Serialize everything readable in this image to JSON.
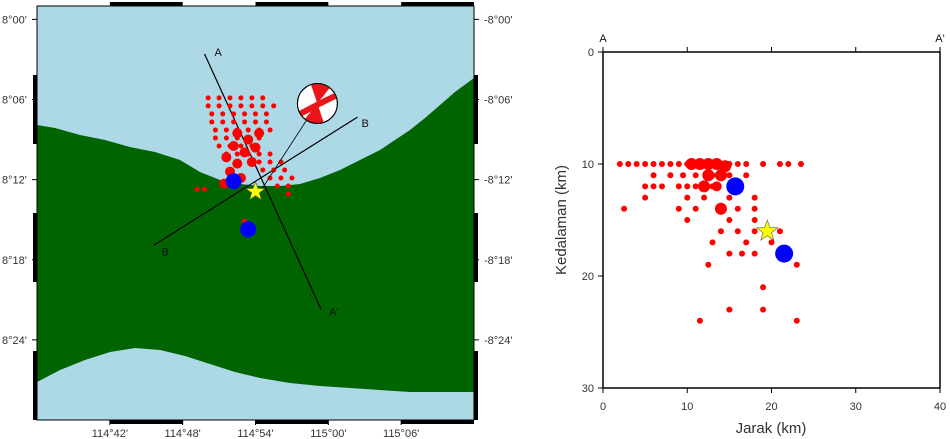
{
  "map": {
    "lon_range": [
      114.6,
      115.2
    ],
    "lat_range": [
      -8.5,
      -7.9833
    ],
    "lon_ticks": [
      {
        "value": 114.7,
        "label": "114°42'"
      },
      {
        "value": 114.8,
        "label": "114°48'"
      },
      {
        "value": 114.9,
        "label": "114°54'"
      },
      {
        "value": 115.0,
        "label": "115°00'"
      },
      {
        "value": 115.1,
        "label": "115°06'"
      }
    ],
    "lat_ticks": [
      {
        "value": -8.0,
        "label": "8°00'",
        "label_right": "-8°00'"
      },
      {
        "value": -8.1,
        "label": "8°06'",
        "label_right": "-8°06'"
      },
      {
        "value": -8.2,
        "label": "8°12'",
        "label_right": "-8°12'"
      },
      {
        "value": -8.3,
        "label": "8°18'",
        "label_right": "-8°18'"
      },
      {
        "value": -8.4,
        "label": "8°24'",
        "label_right": "-8°24'"
      }
    ],
    "colors": {
      "sea": "#add8e6",
      "land": "#006400",
      "event": "#ff0000",
      "station": "#0000ff",
      "mainshock": "#ffff00"
    },
    "profile_A": {
      "start_label": "A",
      "end_label": "A'",
      "start": [
        114.83,
        -8.043
      ],
      "end": [
        114.99,
        -8.362
      ]
    },
    "profile_B": {
      "start_label": "B",
      "end_label": "",
      "start": [
        114.76,
        -8.282
      ],
      "end": [
        115.04,
        -8.122
      ]
    },
    "mainshock": {
      "lon": 114.9,
      "lat": -8.215
    },
    "stations": [
      {
        "lon": 114.87,
        "lat": -8.202
      },
      {
        "lon": 114.89,
        "lat": -8.262
      }
    ],
    "focal_mechanism": {
      "lon": 114.985,
      "lat": -8.105,
      "leader_to": [
        114.91,
        -8.21
      ]
    },
    "events": [
      {
        "lon": 114.835,
        "lat": -8.098,
        "s": 2.5
      },
      {
        "lon": 114.85,
        "lat": -8.098,
        "s": 2.5
      },
      {
        "lon": 114.865,
        "lat": -8.098,
        "s": 2.5
      },
      {
        "lon": 114.88,
        "lat": -8.098,
        "s": 2.5
      },
      {
        "lon": 114.895,
        "lat": -8.098,
        "s": 2.5
      },
      {
        "lon": 114.91,
        "lat": -8.098,
        "s": 2.5
      },
      {
        "lon": 114.835,
        "lat": -8.108,
        "s": 2.5
      },
      {
        "lon": 114.85,
        "lat": -8.108,
        "s": 2.5
      },
      {
        "lon": 114.865,
        "lat": -8.108,
        "s": 2.5
      },
      {
        "lon": 114.88,
        "lat": -8.108,
        "s": 2.5
      },
      {
        "lon": 114.895,
        "lat": -8.108,
        "s": 2.5
      },
      {
        "lon": 114.91,
        "lat": -8.108,
        "s": 2.5
      },
      {
        "lon": 114.925,
        "lat": -8.108,
        "s": 2.5
      },
      {
        "lon": 114.84,
        "lat": -8.118,
        "s": 2.5
      },
      {
        "lon": 114.855,
        "lat": -8.118,
        "s": 2.5
      },
      {
        "lon": 114.87,
        "lat": -8.118,
        "s": 2.5
      },
      {
        "lon": 114.885,
        "lat": -8.118,
        "s": 2.5
      },
      {
        "lon": 114.9,
        "lat": -8.118,
        "s": 2.5
      },
      {
        "lon": 114.915,
        "lat": -8.118,
        "s": 2.5
      },
      {
        "lon": 114.84,
        "lat": -8.128,
        "s": 2.5
      },
      {
        "lon": 114.855,
        "lat": -8.128,
        "s": 2.5
      },
      {
        "lon": 114.87,
        "lat": -8.128,
        "s": 2.5
      },
      {
        "lon": 114.885,
        "lat": -8.128,
        "s": 2.5
      },
      {
        "lon": 114.9,
        "lat": -8.128,
        "s": 2.5
      },
      {
        "lon": 114.915,
        "lat": -8.128,
        "s": 2.5
      },
      {
        "lon": 114.845,
        "lat": -8.138,
        "s": 2.5
      },
      {
        "lon": 114.86,
        "lat": -8.138,
        "s": 2.5
      },
      {
        "lon": 114.875,
        "lat": -8.138,
        "s": 2.5
      },
      {
        "lon": 114.89,
        "lat": -8.138,
        "s": 2.5
      },
      {
        "lon": 114.905,
        "lat": -8.138,
        "s": 2.5
      },
      {
        "lon": 114.92,
        "lat": -8.138,
        "s": 2.5
      },
      {
        "lon": 114.845,
        "lat": -8.148,
        "s": 2.5
      },
      {
        "lon": 114.86,
        "lat": -8.148,
        "s": 2.5
      },
      {
        "lon": 114.875,
        "lat": -8.148,
        "s": 2.5
      },
      {
        "lon": 114.89,
        "lat": -8.148,
        "s": 2.5
      },
      {
        "lon": 114.905,
        "lat": -8.148,
        "s": 2.5
      },
      {
        "lon": 114.85,
        "lat": -8.158,
        "s": 2.5
      },
      {
        "lon": 114.865,
        "lat": -8.158,
        "s": 2.5
      },
      {
        "lon": 114.88,
        "lat": -8.158,
        "s": 2.5
      },
      {
        "lon": 114.895,
        "lat": -8.158,
        "s": 2.5
      },
      {
        "lon": 114.86,
        "lat": -8.168,
        "s": 2.5
      },
      {
        "lon": 114.875,
        "lat": -8.168,
        "s": 2.5
      },
      {
        "lon": 114.89,
        "lat": -8.168,
        "s": 2.5
      },
      {
        "lon": 114.905,
        "lat": -8.168,
        "s": 2.5
      },
      {
        "lon": 114.92,
        "lat": -8.168,
        "s": 2.5
      },
      {
        "lon": 114.905,
        "lat": -8.178,
        "s": 2.5
      },
      {
        "lon": 114.92,
        "lat": -8.178,
        "s": 2.5
      },
      {
        "lon": 114.935,
        "lat": -8.178,
        "s": 2.5
      },
      {
        "lon": 114.91,
        "lat": -8.188,
        "s": 2.5
      },
      {
        "lon": 114.925,
        "lat": -8.188,
        "s": 2.5
      },
      {
        "lon": 114.94,
        "lat": -8.188,
        "s": 2.5
      },
      {
        "lon": 114.92,
        "lat": -8.198,
        "s": 2.5
      },
      {
        "lon": 114.935,
        "lat": -8.198,
        "s": 2.5
      },
      {
        "lon": 114.95,
        "lat": -8.198,
        "s": 2.5
      },
      {
        "lon": 114.93,
        "lat": -8.208,
        "s": 2.5
      },
      {
        "lon": 114.945,
        "lat": -8.208,
        "s": 2.5
      },
      {
        "lon": 114.945,
        "lat": -8.218,
        "s": 2.5
      },
      {
        "lon": 114.82,
        "lat": -8.212,
        "s": 2.5
      },
      {
        "lon": 114.83,
        "lat": -8.212,
        "s": 2.5
      },
      {
        "lon": 114.885,
        "lat": -8.252,
        "s": 2.5
      },
      {
        "lon": 114.875,
        "lat": -8.142,
        "s": 5
      },
      {
        "lon": 114.89,
        "lat": -8.15,
        "s": 5
      },
      {
        "lon": 114.87,
        "lat": -8.158,
        "s": 5
      },
      {
        "lon": 114.885,
        "lat": -8.166,
        "s": 5
      },
      {
        "lon": 114.9,
        "lat": -8.16,
        "s": 5
      },
      {
        "lon": 114.86,
        "lat": -8.172,
        "s": 5
      },
      {
        "lon": 114.875,
        "lat": -8.18,
        "s": 5
      },
      {
        "lon": 114.865,
        "lat": -8.19,
        "s": 5
      },
      {
        "lon": 114.88,
        "lat": -8.198,
        "s": 5
      },
      {
        "lon": 114.895,
        "lat": -8.178,
        "s": 5
      },
      {
        "lon": 114.905,
        "lat": -8.142,
        "s": 5
      },
      {
        "lon": 114.857,
        "lat": -8.205,
        "s": 5
      }
    ]
  },
  "chart_data": {
    "type": "scatter",
    "title": "",
    "xlabel": "Jarak (km)",
    "ylabel": "Kedalaman (km)",
    "xlim": [
      0,
      40
    ],
    "ylim": [
      0,
      30
    ],
    "y_inverted": true,
    "x_ticks": [
      0,
      10,
      20,
      30,
      40
    ],
    "y_ticks": [
      0,
      10,
      20,
      30
    ],
    "profile_start_label": "A",
    "profile_end_label": "A'",
    "grid": false,
    "series": [
      {
        "values": [
          {
            "x": 2,
            "y": 10,
            "s": 3
          },
          {
            "x": 3,
            "y": 10,
            "s": 3
          },
          {
            "x": 4,
            "y": 10,
            "s": 3
          },
          {
            "x": 5,
            "y": 10,
            "s": 3
          },
          {
            "x": 6,
            "y": 10,
            "s": 3
          },
          {
            "x": 7,
            "y": 10,
            "s": 3
          },
          {
            "x": 8,
            "y": 10,
            "s": 3
          },
          {
            "x": 9,
            "y": 10,
            "s": 3
          },
          {
            "x": 10,
            "y": 10,
            "s": 3
          },
          {
            "x": 11,
            "y": 10,
            "s": 3
          },
          {
            "x": 12,
            "y": 10,
            "s": 3
          },
          {
            "x": 13,
            "y": 10,
            "s": 3
          },
          {
            "x": 14,
            "y": 10,
            "s": 3
          },
          {
            "x": 15,
            "y": 10,
            "s": 3
          },
          {
            "x": 16,
            "y": 10,
            "s": 3
          },
          {
            "x": 17,
            "y": 10,
            "s": 3
          },
          {
            "x": 19,
            "y": 10,
            "s": 3
          },
          {
            "x": 21,
            "y": 10,
            "s": 3
          },
          {
            "x": 22,
            "y": 10,
            "s": 3
          },
          {
            "x": 23.5,
            "y": 10,
            "s": 3
          },
          {
            "x": 6,
            "y": 11,
            "s": 3
          },
          {
            "x": 8,
            "y": 11,
            "s": 3
          },
          {
            "x": 9.5,
            "y": 11,
            "s": 3
          },
          {
            "x": 11,
            "y": 11,
            "s": 3
          },
          {
            "x": 13,
            "y": 11,
            "s": 3
          },
          {
            "x": 15,
            "y": 11,
            "s": 3
          },
          {
            "x": 17,
            "y": 11,
            "s": 3
          },
          {
            "x": 5,
            "y": 12,
            "s": 3
          },
          {
            "x": 6,
            "y": 12,
            "s": 3
          },
          {
            "x": 7,
            "y": 12,
            "s": 3
          },
          {
            "x": 9,
            "y": 12,
            "s": 3
          },
          {
            "x": 10,
            "y": 12,
            "s": 3
          },
          {
            "x": 11,
            "y": 12,
            "s": 3
          },
          {
            "x": 13,
            "y": 12,
            "s": 3
          },
          {
            "x": 5,
            "y": 13,
            "s": 3
          },
          {
            "x": 10,
            "y": 13,
            "s": 3
          },
          {
            "x": 12,
            "y": 13,
            "s": 3
          },
          {
            "x": 15,
            "y": 13,
            "s": 3
          },
          {
            "x": 18,
            "y": 13,
            "s": 3
          },
          {
            "x": 2.5,
            "y": 14,
            "s": 3
          },
          {
            "x": 9,
            "y": 14,
            "s": 3
          },
          {
            "x": 11,
            "y": 14,
            "s": 3
          },
          {
            "x": 16,
            "y": 14,
            "s": 3
          },
          {
            "x": 18,
            "y": 14,
            "s": 3
          },
          {
            "x": 10,
            "y": 15,
            "s": 3
          },
          {
            "x": 15,
            "y": 15,
            "s": 3
          },
          {
            "x": 18,
            "y": 15,
            "s": 3
          },
          {
            "x": 14,
            "y": 16,
            "s": 3
          },
          {
            "x": 16,
            "y": 16,
            "s": 3
          },
          {
            "x": 18,
            "y": 16,
            "s": 3
          },
          {
            "x": 21,
            "y": 16,
            "s": 3
          },
          {
            "x": 13,
            "y": 17,
            "s": 3
          },
          {
            "x": 17,
            "y": 17,
            "s": 3
          },
          {
            "x": 20,
            "y": 17,
            "s": 3
          },
          {
            "x": 15,
            "y": 18,
            "s": 3
          },
          {
            "x": 16.5,
            "y": 18,
            "s": 3
          },
          {
            "x": 18,
            "y": 18,
            "s": 3
          },
          {
            "x": 12.5,
            "y": 19,
            "s": 3
          },
          {
            "x": 23,
            "y": 19,
            "s": 3
          },
          {
            "x": 19,
            "y": 21,
            "s": 3
          },
          {
            "x": 15,
            "y": 23,
            "s": 3
          },
          {
            "x": 19,
            "y": 23,
            "s": 3
          },
          {
            "x": 11.5,
            "y": 24,
            "s": 3
          },
          {
            "x": 23,
            "y": 24,
            "s": 3
          },
          {
            "x": 10.5,
            "y": 10,
            "s": 6
          },
          {
            "x": 11.5,
            "y": 10,
            "s": 6
          },
          {
            "x": 12.5,
            "y": 10,
            "s": 6
          },
          {
            "x": 13.5,
            "y": 10,
            "s": 6
          },
          {
            "x": 14.5,
            "y": 10.2,
            "s": 6
          },
          {
            "x": 12.5,
            "y": 11,
            "s": 6
          },
          {
            "x": 14,
            "y": 11,
            "s": 6
          },
          {
            "x": 12,
            "y": 12,
            "s": 6
          },
          {
            "x": 14,
            "y": 14,
            "s": 6
          },
          {
            "x": 13.5,
            "y": 12,
            "s": 5
          }
        ]
      }
    ],
    "stations": [
      {
        "x": 15.7,
        "y": 12
      },
      {
        "x": 21.5,
        "y": 18
      }
    ],
    "mainshock": {
      "x": 19.5,
      "y": 16
    }
  }
}
